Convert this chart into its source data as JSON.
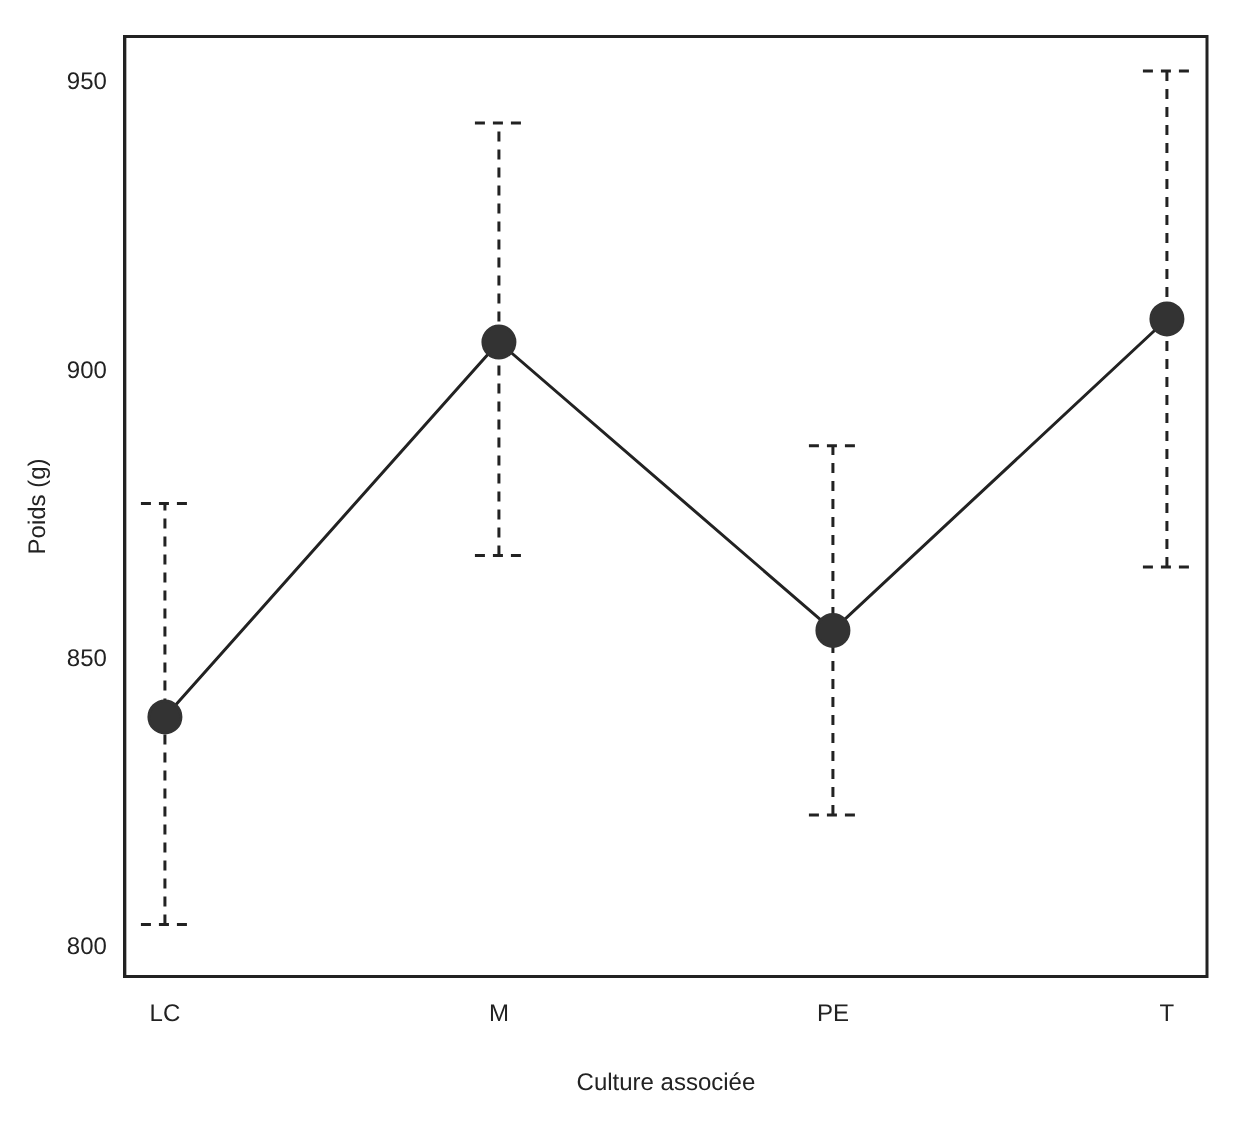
{
  "chart_data": {
    "type": "line",
    "xlabel": "Culture associée",
    "ylabel": "Poids (g)",
    "categories": [
      "LC",
      "M",
      "PE",
      "T"
    ],
    "series": [
      {
        "color": "#333333",
        "values": [
          840,
          905,
          855,
          909
        ],
        "errors": [
          [
            804,
            877
          ],
          [
            868,
            943
          ],
          [
            823,
            887
          ],
          [
            866,
            952
          ]
        ]
      }
    ],
    "ylim": [
      795,
      958
    ],
    "yticks": [
      800,
      850,
      900,
      950
    ],
    "grid": false,
    "legend": false,
    "marker": "circle",
    "line_style": "solid"
  }
}
